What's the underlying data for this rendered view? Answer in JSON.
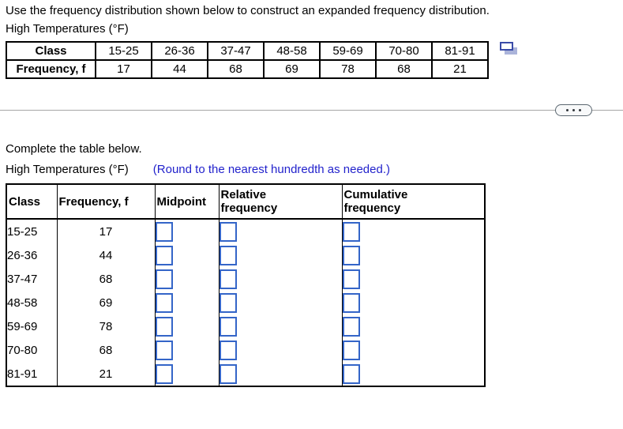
{
  "colors": {
    "note_blue": "#2222CC",
    "input_border_blue": "#3465C8",
    "icon_dark_blue": "#3A4CA8",
    "icon_light_blue": "#ABB4DA"
  },
  "header": {
    "instruction": "Use the frequency distribution shown below to construct an expanded frequency distribution.",
    "table_title": "High Temperatures (°F)"
  },
  "frequency_table": {
    "class_label": "Class",
    "frequency_label": "Frequency, f",
    "classes": [
      "15-25",
      "26-36",
      "37-47",
      "48-58",
      "59-69",
      "70-80",
      "81-91"
    ],
    "frequencies": [
      "17",
      "44",
      "68",
      "69",
      "78",
      "68",
      "21"
    ],
    "popup_icon": "popup-table-icon"
  },
  "work_area": {
    "prompt": "Complete the table below.",
    "table_title": "High Temperatures (°F)",
    "rounding_note": "(Round to the nearest hundredth as needed.)"
  },
  "answer_table": {
    "headers": [
      "Class",
      "Frequency, f",
      "Midpoint",
      "Relative\nfrequency",
      "Cumulative\nfrequency"
    ],
    "rows": [
      {
        "class_range": "15-25",
        "frequency": "17",
        "midpoint": "",
        "relative_frequency": "",
        "cumulative_frequency": ""
      },
      {
        "class_range": "26-36",
        "frequency": "44",
        "midpoint": "",
        "relative_frequency": "",
        "cumulative_frequency": ""
      },
      {
        "class_range": "37-47",
        "frequency": "68",
        "midpoint": "",
        "relative_frequency": "",
        "cumulative_frequency": ""
      },
      {
        "class_range": "48-58",
        "frequency": "69",
        "midpoint": "",
        "relative_frequency": "",
        "cumulative_frequency": ""
      },
      {
        "class_range": "59-69",
        "frequency": "78",
        "midpoint": "",
        "relative_frequency": "",
        "cumulative_frequency": ""
      },
      {
        "class_range": "70-80",
        "frequency": "68",
        "midpoint": "",
        "relative_frequency": "",
        "cumulative_frequency": ""
      },
      {
        "class_range": "81-91",
        "frequency": "21",
        "midpoint": "",
        "relative_frequency": "",
        "cumulative_frequency": ""
      }
    ]
  }
}
